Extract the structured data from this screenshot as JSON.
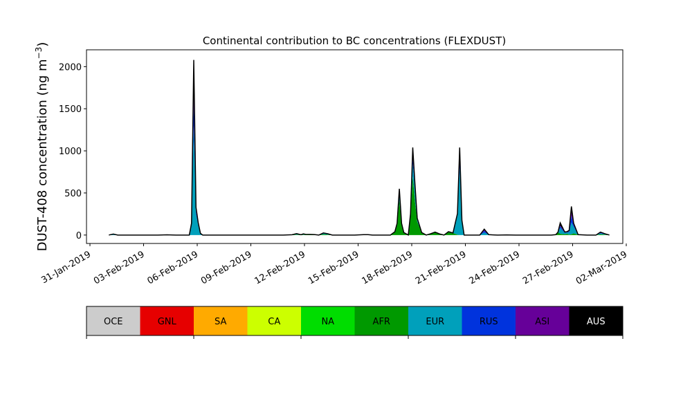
{
  "chart_data": {
    "type": "area",
    "title": "Continental contribution to BC concentrations (FLEXDUST)",
    "ylabel_main": "DUST-408 concentration (ng m",
    "ylabel_sup": "−3",
    "ylabel_close": ")",
    "xlabel": "",
    "xlim": [
      "2019-01-31",
      "2019-03-02"
    ],
    "ylim": [
      -100,
      2200
    ],
    "yticks": [
      0,
      500,
      1000,
      1500,
      2000
    ],
    "xticks": [
      "31-Jan-2019",
      "03-Feb-2019",
      "06-Feb-2019",
      "09-Feb-2019",
      "12-Feb-2019",
      "15-Feb-2019",
      "18-Feb-2019",
      "21-Feb-2019",
      "24-Feb-2019",
      "27-Feb-2019",
      "02-Mar-2019"
    ],
    "grid": false,
    "series_order": [
      "OCE",
      "GNL",
      "SA",
      "CA",
      "NA",
      "AFR",
      "EUR",
      "RUS",
      "ASI",
      "AUS"
    ],
    "colors": {
      "OCE": "#cccccc",
      "GNL": "#e60000",
      "SA": "#ffaa00",
      "CA": "#ccff00",
      "NA": "#00dd00",
      "AFR": "#009900",
      "EUR": "#00a0bb",
      "RUS": "#0033dd",
      "ASI": "#660099",
      "AUS": "#000000"
    },
    "legend": {
      "position": "bottom",
      "items": [
        {
          "name": "OCE",
          "color": "#cccccc",
          "text_color": "#000000"
        },
        {
          "name": "GNL",
          "color": "#e60000",
          "text_color": "#000000"
        },
        {
          "name": "SA",
          "color": "#ffaa00",
          "text_color": "#000000"
        },
        {
          "name": "CA",
          "color": "#ccff00",
          "text_color": "#000000"
        },
        {
          "name": "NA",
          "color": "#00dd00",
          "text_color": "#000000"
        },
        {
          "name": "AFR",
          "color": "#009900",
          "text_color": "#000000"
        },
        {
          "name": "EUR",
          "color": "#00a0bb",
          "text_color": "#000000"
        },
        {
          "name": "RUS",
          "color": "#0033dd",
          "text_color": "#000000"
        },
        {
          "name": "ASI",
          "color": "#660099",
          "text_color": "#000000"
        },
        {
          "name": "AUS",
          "color": "#000000",
          "text_color": "#ffffff"
        }
      ]
    },
    "x": [
      "2019-02-01 06:00",
      "2019-02-01 12:00",
      "2019-02-01 18:00",
      "2019-02-02 00:00",
      "2019-02-02 06:00",
      "2019-02-02 12:00",
      "2019-02-02 18:00",
      "2019-02-03 00:00",
      "2019-02-03 12:00",
      "2019-02-04 00:00",
      "2019-02-04 12:00",
      "2019-02-05 00:00",
      "2019-02-05 12:00",
      "2019-02-05 18:00",
      "2019-02-05 21:00",
      "2019-02-06 00:00",
      "2019-02-06 03:00",
      "2019-02-06 06:00",
      "2019-02-06 09:00",
      "2019-02-06 12:00",
      "2019-02-06 18:00",
      "2019-02-07 00:00",
      "2019-02-08 00:00",
      "2019-02-09 00:00",
      "2019-02-10 00:00",
      "2019-02-11 00:00",
      "2019-02-11 06:00",
      "2019-02-11 12:00",
      "2019-02-11 18:00",
      "2019-02-12 00:00",
      "2019-02-12 03:00",
      "2019-02-12 06:00",
      "2019-02-12 12:00",
      "2019-02-12 18:00",
      "2019-02-13 00:00",
      "2019-02-13 06:00",
      "2019-02-13 12:00",
      "2019-02-13 18:00",
      "2019-02-14 00:00",
      "2019-02-14 12:00",
      "2019-02-15 00:00",
      "2019-02-15 12:00",
      "2019-02-15 18:00",
      "2019-02-16 00:00",
      "2019-02-16 12:00",
      "2019-02-17 00:00",
      "2019-02-17 06:00",
      "2019-02-17 09:00",
      "2019-02-17 12:00",
      "2019-02-17 15:00",
      "2019-02-17 18:00",
      "2019-02-18 00:00",
      "2019-02-18 03:00",
      "2019-02-18 06:00",
      "2019-02-18 09:00",
      "2019-02-18 12:00",
      "2019-02-18 18:00",
      "2019-02-19 00:00",
      "2019-02-19 06:00",
      "2019-02-19 12:00",
      "2019-02-19 18:00",
      "2019-02-20 00:00",
      "2019-02-20 06:00",
      "2019-02-20 12:00",
      "2019-02-20 18:00",
      "2019-02-20 21:00",
      "2019-02-21 00:00",
      "2019-02-21 03:00",
      "2019-02-21 06:00",
      "2019-02-21 12:00",
      "2019-02-21 18:00",
      "2019-02-22 00:00",
      "2019-02-22 06:00",
      "2019-02-22 12:00",
      "2019-02-22 18:00",
      "2019-02-23 00:00",
      "2019-02-23 12:00",
      "2019-02-24 00:00",
      "2019-02-25 00:00",
      "2019-02-25 12:00",
      "2019-02-26 00:00",
      "2019-02-26 06:00",
      "2019-02-26 09:00",
      "2019-02-26 12:00",
      "2019-02-26 18:00",
      "2019-02-26 21:00",
      "2019-02-27 00:00",
      "2019-02-27 03:00",
      "2019-02-27 06:00",
      "2019-02-27 12:00",
      "2019-02-28 00:00",
      "2019-02-28 12:00",
      "2019-02-28 18:00",
      "2019-03-01 00:00",
      "2019-03-01 06:00"
    ],
    "series": [
      {
        "name": "AFR",
        "values": [
          0,
          0,
          0,
          0,
          0,
          0,
          0,
          0,
          0,
          0,
          0,
          0,
          0,
          0,
          0,
          0,
          0,
          0,
          0,
          0,
          0,
          0,
          0,
          0,
          0,
          0,
          2,
          4,
          5,
          4,
          4,
          4,
          4,
          3,
          0,
          10,
          5,
          0,
          0,
          0,
          0,
          3,
          2,
          0,
          0,
          0,
          40,
          120,
          420,
          120,
          30,
          0,
          210,
          700,
          400,
          160,
          30,
          0,
          15,
          30,
          10,
          0,
          40,
          25,
          5,
          0,
          0,
          0,
          0,
          0,
          0,
          0,
          0,
          0,
          0,
          0,
          0,
          0,
          0,
          0,
          0,
          5,
          35,
          15,
          10,
          15,
          5,
          10,
          20,
          5,
          0,
          0,
          10,
          5,
          0
        ]
      },
      {
        "name": "EUR",
        "values": [
          0,
          12,
          0,
          0,
          0,
          0,
          0,
          0,
          0,
          0,
          3,
          0,
          0,
          0,
          120,
          1300,
          250,
          120,
          20,
          0,
          0,
          0,
          0,
          0,
          0,
          0,
          0,
          0,
          12,
          0,
          10,
          5,
          4,
          3,
          0,
          15,
          10,
          0,
          0,
          0,
          0,
          2,
          3,
          0,
          0,
          0,
          0,
          20,
          70,
          20,
          0,
          0,
          40,
          150,
          150,
          20,
          0,
          0,
          0,
          5,
          3,
          0,
          0,
          0,
          250,
          800,
          150,
          0,
          0,
          0,
          0,
          0,
          30,
          5,
          2,
          0,
          2,
          0,
          0,
          0,
          0,
          0,
          0,
          70,
          15,
          15,
          30,
          140,
          80,
          0,
          0,
          0,
          10,
          5,
          0
        ]
      },
      {
        "name": "RUS",
        "values": [
          0,
          0,
          0,
          0,
          0,
          0,
          0,
          0,
          0,
          0,
          0,
          0,
          0,
          0,
          0,
          300,
          30,
          10,
          0,
          0,
          0,
          0,
          0,
          0,
          0,
          0,
          0,
          0,
          0,
          0,
          0,
          0,
          0,
          0,
          0,
          0,
          0,
          0,
          0,
          0,
          0,
          0,
          0,
          0,
          0,
          0,
          0,
          0,
          0,
          0,
          0,
          0,
          0,
          60,
          20,
          10,
          0,
          0,
          0,
          0,
          0,
          0,
          0,
          0,
          0,
          120,
          15,
          0,
          0,
          0,
          0,
          0,
          20,
          0,
          0,
          0,
          0,
          0,
          0,
          0,
          0,
          0,
          0,
          20,
          5,
          5,
          10,
          80,
          20,
          0,
          0,
          0,
          5,
          5,
          0
        ]
      },
      {
        "name": "ASI",
        "values": [
          0,
          0,
          0,
          0,
          0,
          0,
          0,
          0,
          0,
          0,
          0,
          0,
          0,
          0,
          10,
          150,
          20,
          5,
          0,
          0,
          0,
          0,
          0,
          0,
          0,
          0,
          0,
          0,
          0,
          0,
          0,
          0,
          0,
          0,
          0,
          0,
          0,
          0,
          0,
          0,
          0,
          0,
          0,
          0,
          0,
          0,
          0,
          0,
          0,
          0,
          0,
          0,
          0,
          20,
          10,
          0,
          0,
          0,
          0,
          0,
          0,
          0,
          0,
          0,
          0,
          60,
          5,
          0,
          0,
          0,
          0,
          0,
          10,
          0,
          0,
          0,
          0,
          0,
          0,
          0,
          0,
          0,
          0,
          10,
          2,
          2,
          5,
          40,
          10,
          0,
          0,
          0,
          5,
          0,
          0
        ]
      },
      {
        "name": "AUS",
        "values": [
          0,
          0,
          0,
          0,
          0,
          0,
          0,
          0,
          0,
          0,
          0,
          0,
          0,
          0,
          10,
          330,
          30,
          10,
          0,
          0,
          0,
          0,
          0,
          0,
          0,
          0,
          0,
          0,
          0,
          0,
          0,
          0,
          0,
          0,
          0,
          0,
          0,
          0,
          0,
          0,
          0,
          0,
          0,
          0,
          0,
          0,
          0,
          0,
          60,
          0,
          0,
          0,
          0,
          110,
          20,
          10,
          0,
          0,
          0,
          0,
          0,
          0,
          0,
          0,
          0,
          60,
          5,
          0,
          0,
          0,
          0,
          0,
          10,
          0,
          0,
          0,
          0,
          0,
          0,
          0,
          0,
          0,
          0,
          30,
          5,
          3,
          5,
          70,
          10,
          0,
          0,
          0,
          5,
          0,
          0
        ]
      }
    ]
  }
}
